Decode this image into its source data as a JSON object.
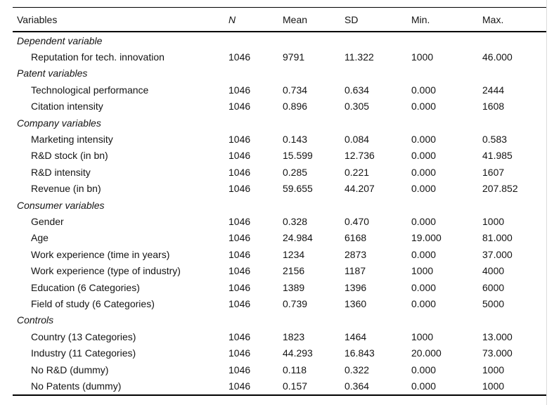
{
  "colors": {
    "background": "#ffffff",
    "text": "#141414",
    "rule": "#000000",
    "frame_line": "#dcdcdc"
  },
  "table": {
    "columns": [
      "Variables",
      "N",
      "Mean",
      "SD",
      "Min.",
      "Max."
    ],
    "sections": [
      {
        "label": "Dependent variable",
        "rows": [
          {
            "label": "Reputation for tech. innovation",
            "values": [
              "1046",
              "9791",
              "11.322",
              "1000",
              "46.000"
            ]
          }
        ]
      },
      {
        "label": "Patent variables",
        "rows": [
          {
            "label": "Technological performance",
            "values": [
              "1046",
              "0.734",
              "0.634",
              "0.000",
              "2444"
            ]
          },
          {
            "label": "Citation intensity",
            "values": [
              "1046",
              "0.896",
              "0.305",
              "0.000",
              "1608"
            ]
          }
        ]
      },
      {
        "label": "Company variables",
        "rows": [
          {
            "label": "Marketing intensity",
            "values": [
              "1046",
              "0.143",
              "0.084",
              "0.000",
              "0.583"
            ]
          },
          {
            "label": "R&D stock (in bn)",
            "values": [
              "1046",
              "15.599",
              "12.736",
              "0.000",
              "41.985"
            ]
          },
          {
            "label": "R&D intensity",
            "values": [
              "1046",
              "0.285",
              "0.221",
              "0.000",
              "1607"
            ]
          },
          {
            "label": "Revenue (in bn)",
            "values": [
              "1046",
              "59.655",
              "44.207",
              "0.000",
              "207.852"
            ]
          }
        ]
      },
      {
        "label": "Consumer variables",
        "rows": [
          {
            "label": "Gender",
            "values": [
              "1046",
              "0.328",
              "0.470",
              "0.000",
              "1000"
            ]
          },
          {
            "label": "Age",
            "values": [
              "1046",
              "24.984",
              "6168",
              "19.000",
              "81.000"
            ]
          },
          {
            "label": "Work experience (time in years)",
            "values": [
              "1046",
              "1234",
              "2873",
              "0.000",
              "37.000"
            ]
          },
          {
            "label": "Work experience (type of industry)",
            "values": [
              "1046",
              "2156",
              "1187",
              "1000",
              "4000"
            ]
          },
          {
            "label": "Education (6 Categories)",
            "values": [
              "1046",
              "1389",
              "1396",
              "0.000",
              "6000"
            ]
          },
          {
            "label": "Field of study (6 Categories)",
            "values": [
              "1046",
              "0.739",
              "1360",
              "0.000",
              "5000"
            ]
          }
        ]
      },
      {
        "label": "Controls",
        "rows": [
          {
            "label": "Country (13 Categories)",
            "values": [
              "1046",
              "1823",
              "1464",
              "1000",
              "13.000"
            ]
          },
          {
            "label": "Industry (11 Categories)",
            "values": [
              "1046",
              "44.293",
              "16.843",
              "20.000",
              "73.000"
            ]
          },
          {
            "label": "No R&D (dummy)",
            "values": [
              "1046",
              "0.118",
              "0.322",
              "0.000",
              "1000"
            ]
          },
          {
            "label": "No Patents (dummy)",
            "values": [
              "1046",
              "0.157",
              "0.364",
              "0.000",
              "1000"
            ]
          }
        ]
      }
    ]
  }
}
